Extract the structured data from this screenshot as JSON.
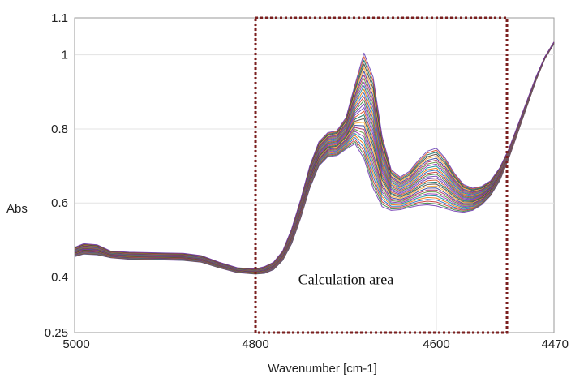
{
  "chart_data": {
    "type": "line",
    "title": "",
    "xlabel": "Wavenumber [cm-1]",
    "ylabel": "Abs",
    "x_reversed": true,
    "xlim": [
      5000,
      4470
    ],
    "ylim": [
      0.25,
      1.1
    ],
    "xticks": [
      5000,
      4800,
      4600,
      4470
    ],
    "yticks": [
      0.25,
      0.4,
      0.6,
      0.8,
      1,
      1.1
    ],
    "grid": true,
    "legend": "none",
    "series_count": 30,
    "series_colors": [
      "#6a2fb0",
      "#2e7d32",
      "#c62828",
      "#1565c0",
      "#ef6c00",
      "#00838f",
      "#8e24aa",
      "#558b2f",
      "#ad1457",
      "#283593",
      "#f9a825",
      "#4e342e",
      "#00695c",
      "#d84315",
      "#5e35b1"
    ],
    "envelope": {
      "x": [
        5000,
        4990,
        4975,
        4960,
        4940,
        4920,
        4900,
        4880,
        4860,
        4840,
        4820,
        4800,
        4790,
        4780,
        4770,
        4760,
        4750,
        4740,
        4730,
        4720,
        4710,
        4700,
        4690,
        4680,
        4670,
        4660,
        4650,
        4640,
        4630,
        4620,
        4610,
        4600,
        4590,
        4580,
        4570,
        4560,
        4550,
        4540,
        4530,
        4520,
        4510,
        4500,
        4490,
        4480,
        4470
      ],
      "lower": [
        0.455,
        0.462,
        0.46,
        0.452,
        0.448,
        0.447,
        0.446,
        0.445,
        0.44,
        0.425,
        0.412,
        0.408,
        0.41,
        0.42,
        0.445,
        0.49,
        0.56,
        0.64,
        0.7,
        0.725,
        0.728,
        0.745,
        0.76,
        0.72,
        0.64,
        0.59,
        0.58,
        0.582,
        0.588,
        0.593,
        0.595,
        0.592,
        0.585,
        0.578,
        0.575,
        0.58,
        0.595,
        0.62,
        0.66,
        0.72,
        0.79,
        0.86,
        0.93,
        0.99,
        1.03
      ],
      "upper": [
        0.48,
        0.49,
        0.487,
        0.47,
        0.467,
        0.466,
        0.465,
        0.464,
        0.458,
        0.44,
        0.425,
        0.422,
        0.428,
        0.44,
        0.47,
        0.53,
        0.61,
        0.7,
        0.765,
        0.79,
        0.795,
        0.83,
        0.92,
        1.005,
        0.94,
        0.78,
        0.69,
        0.67,
        0.685,
        0.715,
        0.74,
        0.748,
        0.72,
        0.68,
        0.65,
        0.64,
        0.645,
        0.66,
        0.695,
        0.745,
        0.81,
        0.875,
        0.94,
        0.995,
        1.035
      ]
    },
    "annotations": [
      {
        "type": "rect",
        "style": "dotted",
        "color": "#7b1f1f",
        "x0": 4800,
        "x1": 4522,
        "y0": 0.25,
        "y1": 1.1
      },
      {
        "type": "text",
        "text": "Calculation area",
        "x": 4700,
        "y": 0.38
      }
    ]
  }
}
